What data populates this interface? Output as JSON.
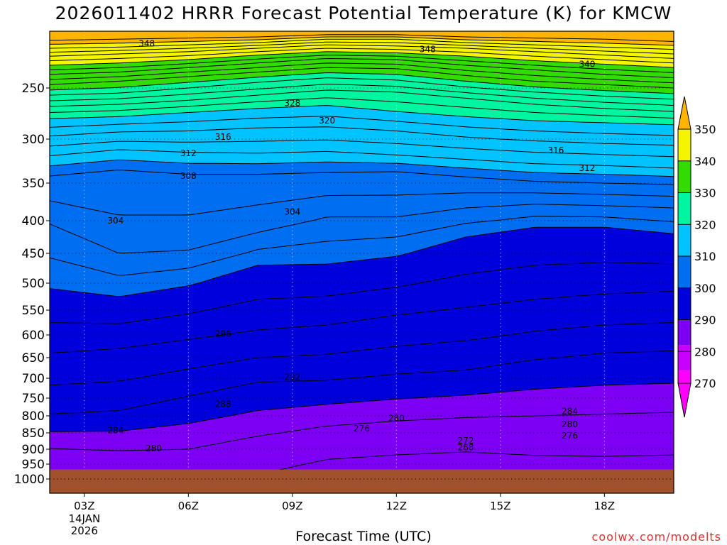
{
  "chart_data": {
    "type": "contour",
    "title": "2026011402 HRRR Forecast Potential Temperature (K) for KMCW",
    "xlabel": "Forecast Time (UTC)",
    "ylabel": "",
    "credit": "coolwx.com/modelts",
    "x_ticks": [
      "03Z",
      "06Z",
      "09Z",
      "12Z",
      "15Z",
      "18Z"
    ],
    "x_date_label": [
      "14JAN",
      "2026"
    ],
    "x_range_hours": [
      2,
      20
    ],
    "y_ticks": [
      250,
      300,
      350,
      400,
      450,
      500,
      550,
      600,
      650,
      700,
      750,
      800,
      850,
      900,
      950,
      1000
    ],
    "y_range_hPa": [
      200,
      1000
    ],
    "surface_pressure_hPa": 968,
    "colorbar_ticks": [
      350,
      340,
      330,
      320,
      310,
      300,
      290,
      280,
      270
    ],
    "contour_interval": 2,
    "fill_bands": [
      {
        "from": 266,
        "to": 274,
        "color": "#ff00ff"
      },
      {
        "from": 274,
        "to": 282,
        "color": "#c800ff"
      },
      {
        "from": 282,
        "to": 290,
        "color": "#7d00f5"
      },
      {
        "from": 290,
        "to": 300,
        "color": "#0000dc"
      },
      {
        "from": 300,
        "to": 310,
        "color": "#006ef0"
      },
      {
        "from": 310,
        "to": 320,
        "color": "#00c3ff"
      },
      {
        "from": 320,
        "to": 330,
        "color": "#00f5a0"
      },
      {
        "from": 330,
        "to": 340,
        "color": "#32dc00"
      },
      {
        "from": 340,
        "to": 350,
        "color": "#f5f500"
      },
      {
        "from": 350,
        "to": 360,
        "color": "#ffb400"
      }
    ],
    "ground_color": "#a0522d",
    "isentrope_pressures": {
      "hours": [
        2,
        4,
        6,
        8,
        10,
        12,
        14,
        16,
        18,
        20
      ],
      "288": [
        898,
        905,
        900,
        860,
        830,
        815,
        805,
        800,
        795,
        790
      ],
      "292": [
        795,
        785,
        745,
        710,
        705,
        690,
        680,
        655,
        640,
        635
      ],
      "296": [
        640,
        630,
        610,
        590,
        580,
        560,
        545,
        530,
        520,
        515
      ],
      "300": [
        510,
        525,
        505,
        470,
        468,
        455,
        425,
        410,
        410,
        420
      ],
      "304": [
        405,
        450,
        445,
        418,
        395,
        395,
        383,
        378,
        380,
        383
      ],
      "308": [
        342,
        335,
        340,
        340,
        338,
        337,
        343,
        348,
        350,
        352
      ],
      "312": [
        319,
        312,
        315,
        316,
        314,
        318,
        323,
        328,
        330,
        333
      ],
      "316": [
        297,
        293,
        292,
        289,
        288,
        292,
        298,
        302,
        305,
        307
      ],
      "320": [
        280,
        278,
        274,
        270,
        267,
        273,
        278,
        282,
        284,
        286
      ],
      "324": [
        268,
        266,
        262,
        257,
        252,
        254,
        260,
        266,
        270,
        273
      ],
      "328": [
        257,
        255,
        250,
        245,
        241,
        243,
        249,
        254,
        258,
        261
      ],
      "332": [
        247,
        244,
        240,
        236,
        232,
        233,
        239,
        244,
        247,
        250
      ],
      "336": [
        238,
        236,
        232,
        228,
        224,
        225,
        230,
        234,
        238,
        241
      ],
      "340": [
        230,
        228,
        225,
        221,
        218,
        219,
        222,
        226,
        229,
        232
      ],
      "344": [
        222,
        220,
        218,
        215,
        212,
        213,
        215,
        218,
        221,
        224
      ],
      "348": [
        215,
        214,
        212,
        210,
        207,
        207,
        210,
        212,
        214,
        216
      ],
      "352": [
        208,
        207,
        206,
        205,
        203,
        203,
        205,
        206,
        207,
        209
      ]
    },
    "contour_labels": [
      {
        "text": "348",
        "hour": 4.8,
        "p": 211
      },
      {
        "text": "348",
        "hour": 12.9,
        "p": 216
      },
      {
        "text": "340",
        "hour": 17.5,
        "p": 229
      },
      {
        "text": "328",
        "hour": 9.0,
        "p": 265
      },
      {
        "text": "320",
        "hour": 10.0,
        "p": 282
      },
      {
        "text": "316",
        "hour": 7.0,
        "p": 298
      },
      {
        "text": "316",
        "hour": 16.6,
        "p": 313
      },
      {
        "text": "312",
        "hour": 6.0,
        "p": 316
      },
      {
        "text": "312",
        "hour": 17.5,
        "p": 333
      },
      {
        "text": "308",
        "hour": 6.0,
        "p": 342
      },
      {
        "text": "304",
        "hour": 3.9,
        "p": 400
      },
      {
        "text": "304",
        "hour": 9.0,
        "p": 388
      },
      {
        "text": "296",
        "hour": 7.0,
        "p": 598
      },
      {
        "text": "292",
        "hour": 9.0,
        "p": 697
      },
      {
        "text": "288",
        "hour": 7.0,
        "p": 767
      },
      {
        "text": "284",
        "hour": 3.9,
        "p": 843
      },
      {
        "text": "284",
        "hour": 17.0,
        "p": 787
      },
      {
        "text": "280",
        "hour": 5.0,
        "p": 898
      },
      {
        "text": "280",
        "hour": 12.0,
        "p": 807
      },
      {
        "text": "280",
        "hour": 17.0,
        "p": 825
      },
      {
        "text": "276",
        "hour": 11.0,
        "p": 838
      },
      {
        "text": "276",
        "hour": 17.0,
        "p": 859
      },
      {
        "text": "272",
        "hour": 14.0,
        "p": 874
      },
      {
        "text": "268",
        "hour": 14.0,
        "p": 895
      }
    ],
    "grid": "dotted",
    "colorbar_position": "right"
  }
}
